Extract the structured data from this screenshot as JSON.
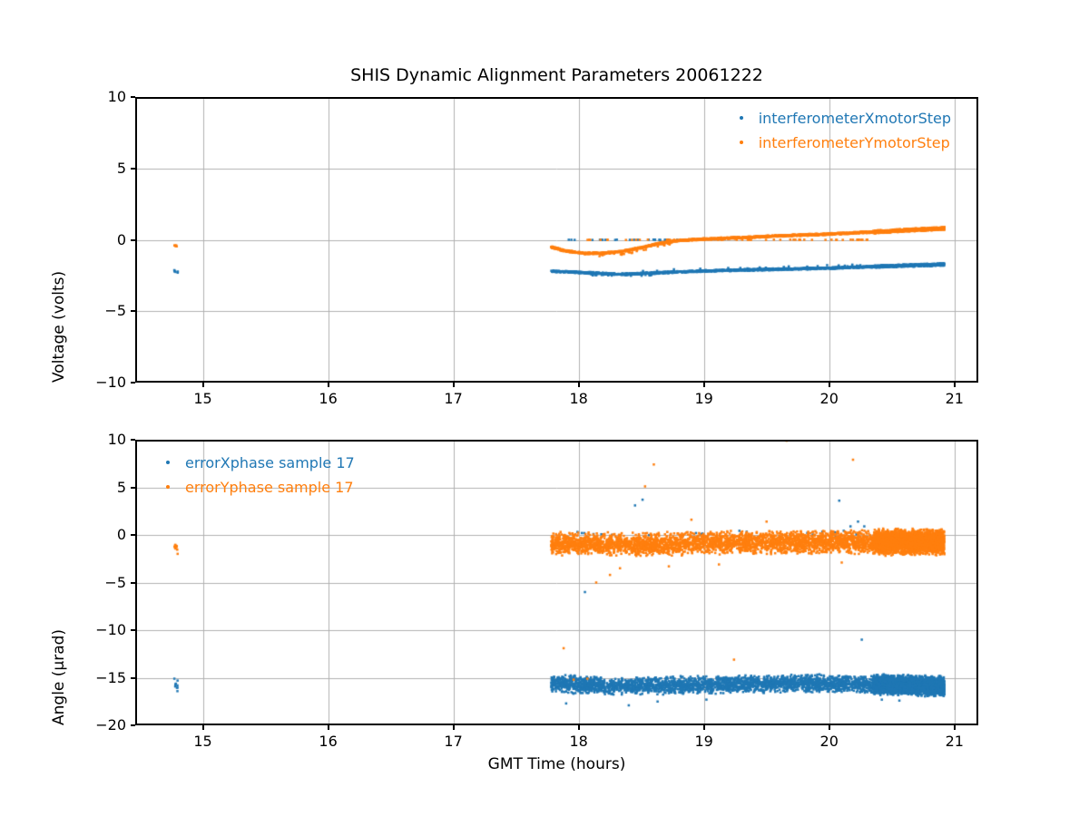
{
  "figure": {
    "title": "SHIS Dynamic Alignment Parameters 20061222",
    "background": "#ffffff"
  },
  "colors": {
    "series_blue": "#1f77b4",
    "series_orange": "#ff7f0e",
    "grid": "#b0b0b0",
    "spine": "#000000",
    "text": "#000000"
  },
  "chart_data": [
    {
      "type": "scatter",
      "title": "SHIS Dynamic Alignment Parameters 20061222",
      "xlabel": "",
      "ylabel": "Voltage (volts)",
      "xlim": [
        14.46,
        21.19
      ],
      "ylim": [
        -10,
        10
      ],
      "xticks": [
        15,
        16,
        17,
        18,
        19,
        20,
        21
      ],
      "yticks": [
        -10,
        -5,
        0,
        5,
        10
      ],
      "grid": true,
      "legend_position": "top-right",
      "series": [
        {
          "name": "interferometerXmotorStep",
          "color": "#1f77b4",
          "trend": [
            [
              17.78,
              -2.2
            ],
            [
              18.0,
              -2.28
            ],
            [
              18.35,
              -2.42
            ],
            [
              18.6,
              -2.32
            ],
            [
              19.0,
              -2.18
            ],
            [
              19.5,
              -2.08
            ],
            [
              20.0,
              -1.98
            ],
            [
              20.35,
              -1.88
            ],
            [
              20.92,
              -1.72
            ]
          ],
          "bands": [
            {
              "x0": 14.77,
              "x1": 14.8,
              "n": 6,
              "spread": 0.12,
              "trend": [
                [
                  14.0,
                  -2.2
                ],
                [
                  15.0,
                  -2.2
                ]
              ]
            },
            {
              "x0": 17.78,
              "x1": 20.35,
              "n": 1500,
              "spread": 0.07
            },
            {
              "x0": 20.35,
              "x1": 20.92,
              "n": 700,
              "spread": 0.1
            },
            {
              "x0": 18.1,
              "x1": 18.6,
              "n": 18,
              "spread": 0.08,
              "dy": -0.12
            },
            {
              "x0": 18.4,
              "x1": 20.3,
              "n": 22,
              "spread": 0.08,
              "dy": 0.15
            },
            {
              "x0": 17.85,
              "x1": 18.95,
              "n": 28,
              "spread": 0.02,
              "trend": [
                [
                  17.0,
                  0
                ],
                [
                  21.0,
                  0
                ]
              ]
            }
          ],
          "outliers": []
        },
        {
          "name": "interferometerYmotorStep",
          "color": "#ff7f0e",
          "trend": [
            [
              17.78,
              -0.5
            ],
            [
              17.88,
              -0.75
            ],
            [
              18.05,
              -0.95
            ],
            [
              18.2,
              -0.93
            ],
            [
              18.35,
              -0.8
            ],
            [
              18.5,
              -0.55
            ],
            [
              18.65,
              -0.25
            ],
            [
              18.8,
              -0.05
            ],
            [
              19.0,
              0.05
            ],
            [
              19.3,
              0.15
            ],
            [
              19.6,
              0.28
            ],
            [
              20.0,
              0.4
            ],
            [
              20.35,
              0.55
            ],
            [
              20.92,
              0.8
            ]
          ],
          "bands": [
            {
              "x0": 14.77,
              "x1": 14.8,
              "n": 5,
              "spread": 0.1,
              "trend": [
                [
                  14.0,
                  -0.45
                ],
                [
                  15.0,
                  -0.45
                ]
              ]
            },
            {
              "x0": 17.78,
              "x1": 20.35,
              "n": 1600,
              "spread": 0.07
            },
            {
              "x0": 20.35,
              "x1": 20.92,
              "n": 800,
              "spread": 0.12
            },
            {
              "x0": 18.15,
              "x1": 18.75,
              "n": 30,
              "spread": 0.12,
              "dy": -0.15
            },
            {
              "x0": 18.0,
              "x1": 20.32,
              "n": 55,
              "spread": 0.02,
              "trend": [
                [
                  17.0,
                  0
                ],
                [
                  21.0,
                  0
                ]
              ]
            }
          ],
          "outliers": []
        }
      ]
    },
    {
      "type": "scatter",
      "title": "",
      "xlabel": "GMT Time (hours)",
      "ylabel": "Angle (μrad)",
      "xlim": [
        14.46,
        21.19
      ],
      "ylim": [
        -20,
        10
      ],
      "xticks": [
        15,
        16,
        17,
        18,
        19,
        20,
        21
      ],
      "yticks": [
        -20,
        -15,
        -10,
        -5,
        0,
        5,
        10
      ],
      "grid": true,
      "legend_position": "top-left",
      "series": [
        {
          "name": "errorXphase sample 17",
          "color": "#1f77b4",
          "trend": [
            [
              17.78,
              -15.6
            ],
            [
              18.3,
              -15.9
            ],
            [
              18.8,
              -15.8
            ],
            [
              19.3,
              -15.7
            ],
            [
              19.8,
              -15.6
            ],
            [
              20.35,
              -15.7
            ],
            [
              20.92,
              -15.9
            ]
          ],
          "bands": [
            {
              "x0": 14.77,
              "x1": 14.8,
              "n": 9,
              "spread": 0.9,
              "trend": [
                [
                  14.0,
                  -15.8
                ],
                [
                  15.0,
                  -15.8
                ]
              ]
            },
            {
              "x0": 17.78,
              "x1": 20.35,
              "n": 2800,
              "spread": 1.0
            },
            {
              "x0": 20.35,
              "x1": 20.92,
              "n": 2300,
              "spread": 1.15
            },
            {
              "x0": 17.9,
              "x1": 20.3,
              "n": 22,
              "spread": 0.35,
              "trend": [
                [
                  17.0,
                  0.15
                ],
                [
                  21.0,
                  0.15
                ]
              ]
            }
          ],
          "outliers": [
            [
              18.45,
              3.1
            ],
            [
              18.51,
              3.7
            ],
            [
              20.08,
              3.6
            ],
            [
              20.26,
              -11.0
            ],
            [
              18.05,
              -6.0
            ],
            [
              17.9,
              -17.7
            ],
            [
              18.4,
              -17.9
            ],
            [
              18.63,
              -17.5
            ],
            [
              19.02,
              -17.3
            ],
            [
              20.42,
              -17.3
            ],
            [
              20.56,
              -17.4
            ],
            [
              20.17,
              0.9
            ],
            [
              20.23,
              1.4
            ],
            [
              20.28,
              0.9
            ]
          ]
        },
        {
          "name": "errorYphase sample 17",
          "color": "#ff7f0e",
          "trend": [
            [
              17.78,
              -0.9
            ],
            [
              18.5,
              -1.0
            ],
            [
              19.0,
              -0.85
            ],
            [
              19.5,
              -0.8
            ],
            [
              20.0,
              -0.75
            ],
            [
              20.35,
              -0.75
            ],
            [
              20.92,
              -0.75
            ]
          ],
          "bands": [
            {
              "x0": 14.77,
              "x1": 14.8,
              "n": 10,
              "spread": 1.0,
              "trend": [
                [
                  14.0,
                  -1.1
                ],
                [
                  15.0,
                  -1.1
                ]
              ]
            },
            {
              "x0": 17.78,
              "x1": 20.35,
              "n": 3200,
              "spread": 1.3
            },
            {
              "x0": 20.35,
              "x1": 20.92,
              "n": 2500,
              "spread": 1.45
            }
          ],
          "outliers": [
            [
              18.6,
              7.4
            ],
            [
              20.19,
              7.9
            ],
            [
              18.53,
              5.1
            ],
            [
              19.66,
              9.9
            ],
            [
              18.14,
              -5.0
            ],
            [
              17.88,
              -11.9
            ],
            [
              19.24,
              -13.1
            ],
            [
              17.96,
              -15.2
            ],
            [
              18.07,
              -15.1
            ],
            [
              18.33,
              -3.5
            ],
            [
              18.72,
              -3.3
            ],
            [
              19.12,
              -3.1
            ],
            [
              18.25,
              -4.2
            ],
            [
              20.1,
              -2.9
            ],
            [
              18.9,
              1.6
            ],
            [
              19.5,
              1.4
            ]
          ]
        }
      ]
    }
  ]
}
